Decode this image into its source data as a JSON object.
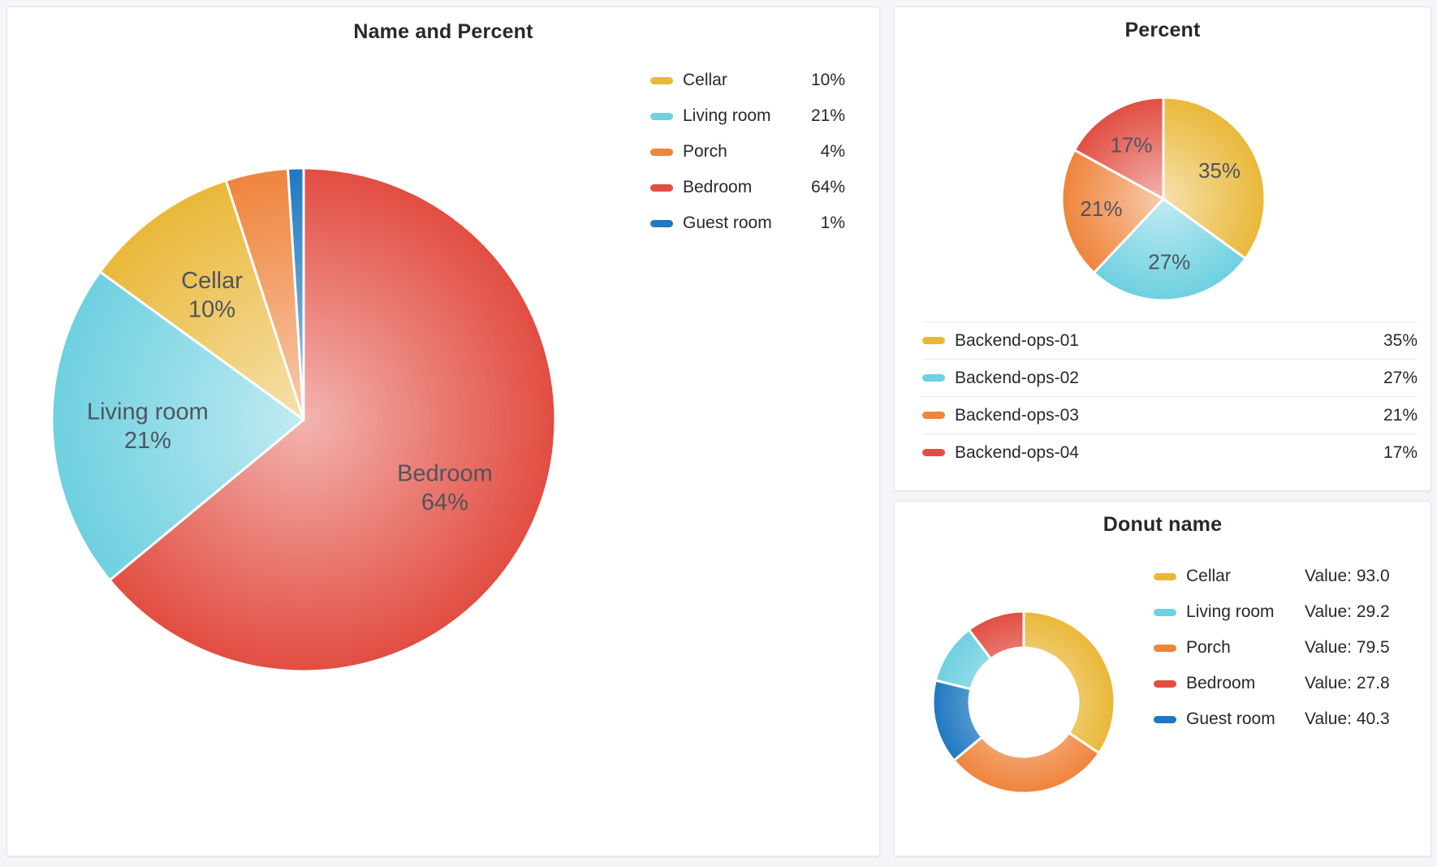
{
  "page": {
    "background": "#F4F5F9",
    "panel_background": "#FFFFFF"
  },
  "palette": {
    "yellow": "#EAB839",
    "cyan": "#6ED0E0",
    "orange": "#EF843C",
    "red": "#E24D42",
    "blue": "#1F78C1"
  },
  "panels": {
    "name_and_percent": {
      "title": "Name and Percent",
      "legend": [
        {
          "label": "Cellar",
          "value": "10%",
          "color": "#EAB839"
        },
        {
          "label": "Living room",
          "value": "21%",
          "color": "#6ED0E0"
        },
        {
          "label": "Porch",
          "value": "4%",
          "color": "#EF843C"
        },
        {
          "label": "Bedroom",
          "value": "64%",
          "color": "#E24D42"
        },
        {
          "label": "Guest room",
          "value": "1%",
          "color": "#1F78C1"
        }
      ]
    },
    "percent": {
      "title": "Percent",
      "table": [
        {
          "label": "Backend-ops-01",
          "value": "35%",
          "color": "#EAB839"
        },
        {
          "label": "Backend-ops-02",
          "value": "27%",
          "color": "#6ED0E0"
        },
        {
          "label": "Backend-ops-03",
          "value": "21%",
          "color": "#EF843C"
        },
        {
          "label": "Backend-ops-04",
          "value": "17%",
          "color": "#E24D42"
        }
      ]
    },
    "donut": {
      "title": "Donut name",
      "legend": [
        {
          "label": "Cellar",
          "value": "Value: 93.0",
          "color": "#EAB839"
        },
        {
          "label": "Living room",
          "value": "Value: 29.2",
          "color": "#6ED0E0"
        },
        {
          "label": "Porch",
          "value": "Value: 79.5",
          "color": "#EF843C"
        },
        {
          "label": "Bedroom",
          "value": "Value: 27.8",
          "color": "#E24D42"
        },
        {
          "label": "Guest room",
          "value": "Value: 40.3",
          "color": "#1F78C1"
        }
      ]
    }
  },
  "chart_data": [
    {
      "type": "pie",
      "title": "Name and Percent",
      "labels": [
        "Cellar",
        "Living room",
        "Porch",
        "Bedroom",
        "Guest room"
      ],
      "values": [
        10,
        21,
        4,
        64,
        1
      ],
      "unit": "percent",
      "colors": [
        "#EAB839",
        "#6ED0E0",
        "#EF843C",
        "#E24D42",
        "#1F78C1"
      ],
      "legend_position": "right",
      "label_mode": "name-pct",
      "sort": "descending",
      "clockwise": true,
      "start_angle_deg": 0,
      "slice_labels_shown": [
        "Bedroom 64%",
        "Living room 21%",
        "Cellar 10%"
      ]
    },
    {
      "type": "pie",
      "title": "Percent",
      "labels": [
        "Backend-ops-01",
        "Backend-ops-02",
        "Backend-ops-03",
        "Backend-ops-04"
      ],
      "values": [
        35,
        27,
        21,
        17
      ],
      "unit": "percent",
      "colors": [
        "#EAB839",
        "#6ED0E0",
        "#EF843C",
        "#E24D42"
      ],
      "legend_position": "bottom-table",
      "label_mode": "pct",
      "sort": "descending",
      "clockwise": true,
      "start_angle_deg": 0,
      "slice_labels_shown": [
        "35%",
        "27%",
        "21%",
        "17%"
      ]
    },
    {
      "type": "donut",
      "title": "Donut name",
      "labels": [
        "Cellar",
        "Living room",
        "Porch",
        "Bedroom",
        "Guest room"
      ],
      "values": [
        93.0,
        29.2,
        79.5,
        27.8,
        40.3
      ],
      "value_label_prefix": "Value: ",
      "colors": [
        "#EAB839",
        "#6ED0E0",
        "#EF843C",
        "#E24D42",
        "#1F78C1"
      ],
      "legend_position": "right",
      "label_mode": "none",
      "sort": "descending",
      "clockwise": true,
      "inner_radius_ratio": 0.6
    }
  ]
}
